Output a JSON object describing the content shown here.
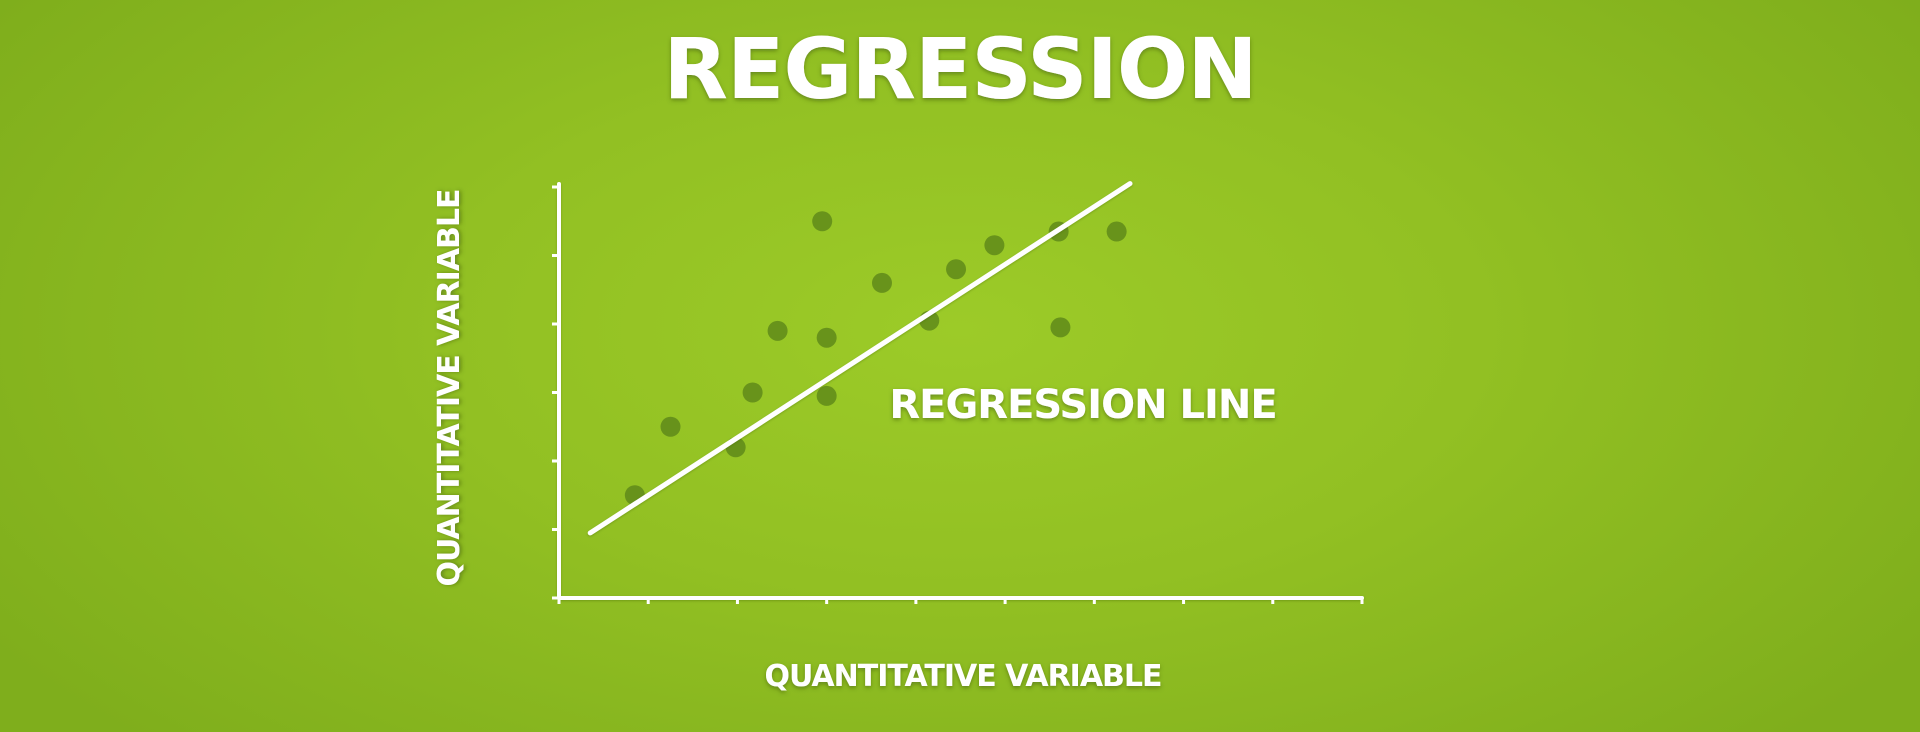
{
  "chart_data": {
    "type": "scatter",
    "title": "REGRESSION",
    "xlabel": "QUANTITATIVE VARIABLE",
    "ylabel": "QUANTITATIVE VARIABLE",
    "annotation": "REGRESSION LINE",
    "xlim": [
      0,
      9
    ],
    "ylim": [
      0,
      6
    ],
    "x_ticks": [
      0,
      1,
      2,
      3,
      4,
      5,
      6,
      7,
      8,
      9
    ],
    "y_ticks": [
      0,
      1,
      2,
      3,
      4,
      5,
      6
    ],
    "grid": false,
    "points": [
      {
        "x": 0.85,
        "y": 1.5
      },
      {
        "x": 1.25,
        "y": 2.5
      },
      {
        "x": 1.98,
        "y": 2.2
      },
      {
        "x": 2.17,
        "y": 3.0
      },
      {
        "x": 2.45,
        "y": 3.9
      },
      {
        "x": 2.95,
        "y": 5.5
      },
      {
        "x": 3.0,
        "y": 3.8
      },
      {
        "x": 3.0,
        "y": 2.95
      },
      {
        "x": 3.62,
        "y": 4.6
      },
      {
        "x": 4.15,
        "y": 4.05
      },
      {
        "x": 4.45,
        "y": 4.8
      },
      {
        "x": 4.88,
        "y": 5.15
      },
      {
        "x": 5.6,
        "y": 5.35
      },
      {
        "x": 5.62,
        "y": 3.95
      },
      {
        "x": 6.25,
        "y": 5.35
      }
    ],
    "regression_line": {
      "x": [
        0.35,
        6.4
      ],
      "y": 0.95,
      "y_end": 6.05
    },
    "colors": {
      "background": "#92c023",
      "axis": "#ffffff",
      "points": "#5f8a1a",
      "line": "#ffffff",
      "text": "#ffffff"
    }
  }
}
